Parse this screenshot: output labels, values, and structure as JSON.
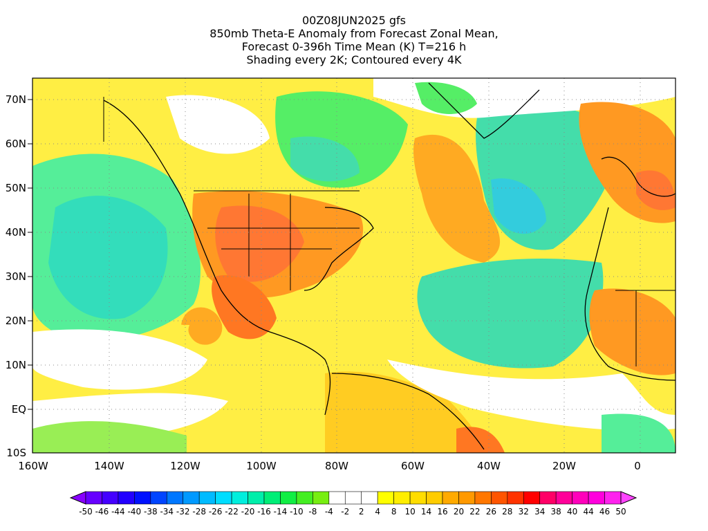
{
  "title": {
    "line1": "00Z08JUN2025 gfs",
    "line2": "850mb Theta-E Anomaly from Forecast Zonal Mean,",
    "line3": "Forecast 0-396h Time Mean (K) T=216 h",
    "line4": "Shading every 2K; Contoured every 4K"
  },
  "map": {
    "lon_range": [
      -160,
      10
    ],
    "lat_range": [
      -10,
      75
    ],
    "lat_ticks": [
      "70N",
      "60N",
      "50N",
      "40N",
      "30N",
      "20N",
      "10N",
      "EQ",
      "10S"
    ],
    "lon_ticks": [
      "160W",
      "140W",
      "120W",
      "100W",
      "80W",
      "60W",
      "40W",
      "20W",
      "0"
    ],
    "grid": "dotted"
  },
  "colorbar": {
    "labels": [
      "-50",
      "-46",
      "-44",
      "-40",
      "-38",
      "-34",
      "-32",
      "-28",
      "-26",
      "-22",
      "-20",
      "-16",
      "-14",
      "-10",
      "-8",
      "-4",
      "-2",
      "2",
      "4",
      "8",
      "10",
      "14",
      "16",
      "20",
      "22",
      "26",
      "28",
      "32",
      "34",
      "38",
      "40",
      "44",
      "46",
      "50"
    ],
    "colors": [
      "#8800ff",
      "#6600ff",
      "#4400ff",
      "#2200ff",
      "#0011ff",
      "#0044ff",
      "#0077ff",
      "#0099ff",
      "#00bbff",
      "#00ddff",
      "#00eedd",
      "#00eeaa",
      "#00ee77",
      "#11ee44",
      "#44ee22",
      "#77ee11",
      "#ffffff",
      "#ffffff",
      "#ffffff",
      "#ffff00",
      "#ffee00",
      "#ffdd00",
      "#ffcc00",
      "#ffaa00",
      "#ff9900",
      "#ff7700",
      "#ff5500",
      "#ff3300",
      "#ff0000",
      "#ff0066",
      "#ff0099",
      "#ff00bb",
      "#ff00dd",
      "#ff22ee",
      "#ff44ff"
    ]
  }
}
